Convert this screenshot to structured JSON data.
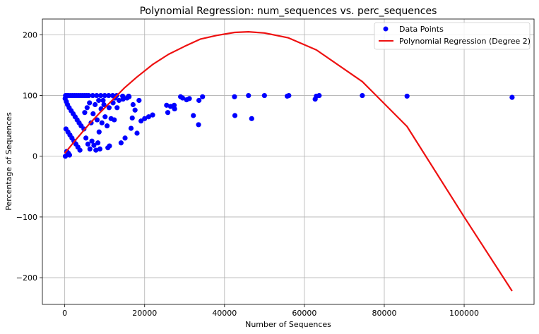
{
  "chart_data": {
    "type": "scatter",
    "title": "Polynomial Regression: num_sequences vs. perc_sequences",
    "xlabel": "Number of Sequences",
    "ylabel": "Percentage of Sequences",
    "xlim": [
      -5600,
      117500
    ],
    "ylim": [
      -244,
      226
    ],
    "grid": true,
    "legend_position": "top-right",
    "x_ticks": [
      0,
      20000,
      40000,
      60000,
      80000,
      100000
    ],
    "y_ticks": [
      -200,
      -100,
      0,
      100,
      200
    ],
    "x_tick_labels": [
      "0",
      "20000",
      "40000",
      "60000",
      "80000",
      "100000"
    ],
    "y_tick_labels": [
      "−200",
      "−100",
      "0",
      "100",
      "200"
    ],
    "series": [
      {
        "name": "Data Points",
        "kind": "scatter",
        "color": "#0000ff",
        "points": [
          [
            200,
            100
          ],
          [
            600,
            100
          ],
          [
            1000,
            100
          ],
          [
            1500,
            100
          ],
          [
            2000,
            100
          ],
          [
            2500,
            100
          ],
          [
            3000,
            100
          ],
          [
            3500,
            100
          ],
          [
            4000,
            100
          ],
          [
            4500,
            100
          ],
          [
            5000,
            100
          ],
          [
            5500,
            100
          ],
          [
            6000,
            100
          ],
          [
            7000,
            100
          ],
          [
            8000,
            100
          ],
          [
            9000,
            100
          ],
          [
            10000,
            100
          ],
          [
            11000,
            100
          ],
          [
            12000,
            100
          ],
          [
            13000,
            100
          ],
          [
            14500,
            99
          ],
          [
            16000,
            99
          ],
          [
            100,
            95
          ],
          [
            400,
            90
          ],
          [
            700,
            85
          ],
          [
            1100,
            80
          ],
          [
            1600,
            75
          ],
          [
            2100,
            70
          ],
          [
            2600,
            65
          ],
          [
            3100,
            60
          ],
          [
            3600,
            55
          ],
          [
            4100,
            50
          ],
          [
            300,
            45
          ],
          [
            800,
            40
          ],
          [
            1300,
            35
          ],
          [
            1800,
            30
          ],
          [
            2300,
            25
          ],
          [
            2800,
            20
          ],
          [
            3300,
            15
          ],
          [
            3800,
            10
          ],
          [
            500,
            8
          ],
          [
            900,
            5
          ],
          [
            1200,
            2
          ],
          [
            150,
            0
          ],
          [
            4800,
            45
          ],
          [
            5300,
            30
          ],
          [
            5800,
            20
          ],
          [
            6300,
            12
          ],
          [
            6800,
            25
          ],
          [
            7300,
            18
          ],
          [
            7800,
            10
          ],
          [
            8300,
            22
          ],
          [
            8800,
            12
          ],
          [
            5000,
            72
          ],
          [
            5600,
            80
          ],
          [
            6200,
            88
          ],
          [
            6600,
            55
          ],
          [
            7100,
            70
          ],
          [
            7600,
            85
          ],
          [
            8100,
            60
          ],
          [
            8600,
            40
          ],
          [
            9100,
            78
          ],
          [
            9600,
            92
          ],
          [
            10100,
            65
          ],
          [
            10600,
            50
          ],
          [
            11100,
            80
          ],
          [
            11600,
            62
          ],
          [
            12100,
            88
          ],
          [
            12600,
            96
          ],
          [
            13100,
            80
          ],
          [
            13600,
            92
          ],
          [
            14100,
            22
          ],
          [
            14600,
            94
          ],
          [
            15100,
            30
          ],
          [
            15600,
            96
          ],
          [
            16100,
            98
          ],
          [
            16600,
            46
          ],
          [
            17100,
            85
          ],
          [
            17600,
            76
          ],
          [
            18100,
            38
          ],
          [
            18600,
            92
          ],
          [
            19100,
            58
          ],
          [
            20000,
            62
          ],
          [
            21000,
            65
          ],
          [
            22000,
            68
          ],
          [
            10800,
            14
          ],
          [
            11200,
            17
          ],
          [
            9300,
            55
          ],
          [
            8500,
            92
          ],
          [
            9800,
            85
          ],
          [
            12400,
            60
          ],
          [
            16900,
            63
          ],
          [
            25500,
            84
          ],
          [
            25800,
            72
          ],
          [
            26500,
            82
          ],
          [
            27400,
            84
          ],
          [
            27500,
            78
          ],
          [
            29000,
            98
          ],
          [
            29500,
            96
          ],
          [
            30500,
            93
          ],
          [
            31200,
            95
          ],
          [
            32200,
            67
          ],
          [
            33500,
            52
          ],
          [
            33600,
            92
          ],
          [
            34500,
            98
          ],
          [
            42500,
            98
          ],
          [
            42600,
            67
          ],
          [
            46000,
            100
          ],
          [
            46800,
            62
          ],
          [
            50000,
            100
          ],
          [
            55700,
            99
          ],
          [
            56100,
            100
          ],
          [
            62700,
            94
          ],
          [
            63000,
            99
          ],
          [
            63700,
            100
          ],
          [
            74500,
            100
          ],
          [
            85700,
            99
          ],
          [
            112000,
            97
          ]
        ]
      },
      {
        "name": "Polynomial Regression (Degree 2)",
        "kind": "line",
        "color": "#ee1111",
        "points": [
          [
            0,
            5
          ],
          [
            3000,
            29
          ],
          [
            6000,
            52
          ],
          [
            9000,
            73
          ],
          [
            12000,
            93
          ],
          [
            15000,
            113
          ],
          [
            18000,
            130
          ],
          [
            22000,
            151
          ],
          [
            26000,
            168
          ],
          [
            30000,
            181
          ],
          [
            34000,
            193
          ],
          [
            38000,
            199
          ],
          [
            42500,
            204
          ],
          [
            46000,
            205
          ],
          [
            50000,
            203
          ],
          [
            56000,
            195
          ],
          [
            63000,
            175
          ],
          [
            74500,
            123
          ],
          [
            85700,
            49
          ],
          [
            100000,
            -100
          ],
          [
            112000,
            -222
          ]
        ]
      }
    ]
  }
}
